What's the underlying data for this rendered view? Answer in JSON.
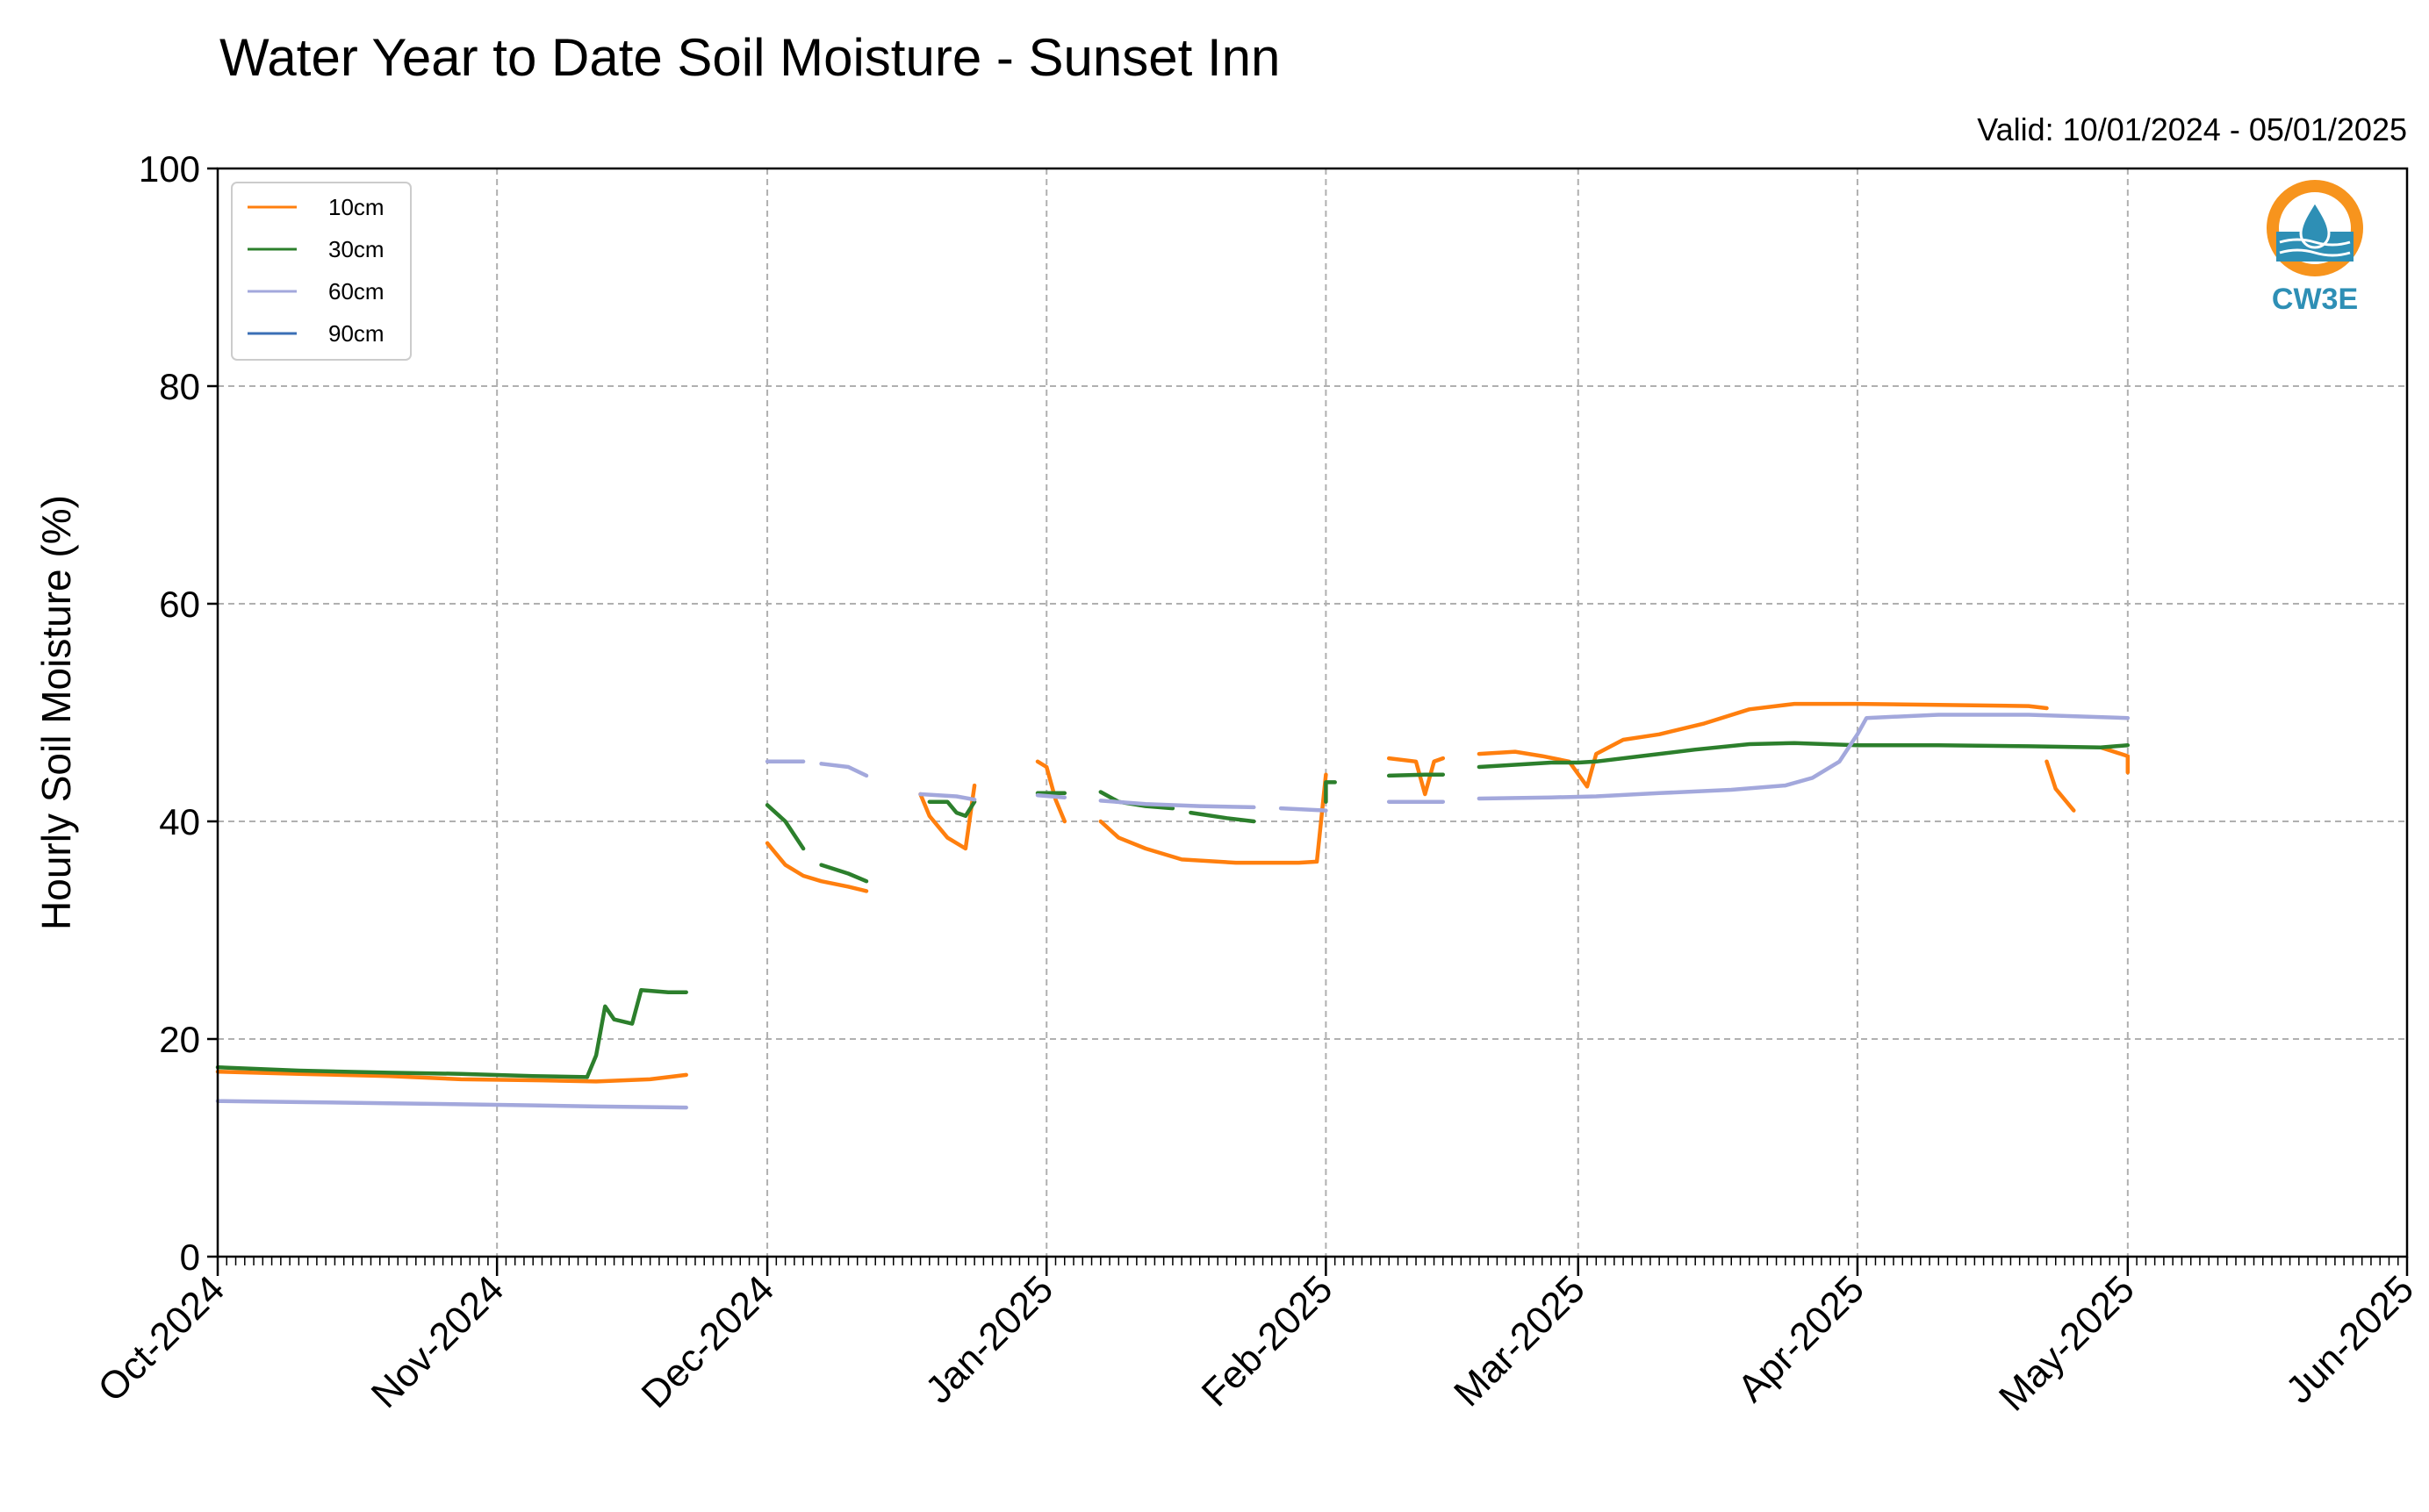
{
  "chart_data": {
    "type": "line",
    "title": "Water Year to Date Soil Moisture - Sunset Inn",
    "subtitle": "Valid: 10/01/2024 - 05/01/2025",
    "ylabel": "Hourly Soil Moisture (%)",
    "xlabel": "",
    "ylim": [
      0,
      100
    ],
    "xlim": [
      "2024-10-01",
      "2025-06-01"
    ],
    "yticks": [
      "0",
      "20",
      "40",
      "60",
      "80",
      "100"
    ],
    "xticks": [
      {
        "date": "2024-10-01",
        "label": "Oct-2024"
      },
      {
        "date": "2024-11-01",
        "label": "Nov-2024"
      },
      {
        "date": "2024-12-01",
        "label": "Dec-2024"
      },
      {
        "date": "2025-01-01",
        "label": "Jan-2025"
      },
      {
        "date": "2025-02-01",
        "label": "Feb-2025"
      },
      {
        "date": "2025-03-01",
        "label": "Mar-2025"
      },
      {
        "date": "2025-04-01",
        "label": "Apr-2025"
      },
      {
        "date": "2025-05-01",
        "label": "May-2025"
      },
      {
        "date": "2025-06-01",
        "label": "Jun-2025"
      }
    ],
    "grid": true,
    "legend_position": "top-left",
    "series": [
      {
        "name": "10cm",
        "color": "#ff7f0e",
        "segments": [
          [
            [
              "2024-10-01",
              17.0
            ],
            [
              "2024-10-10",
              16.8
            ],
            [
              "2024-10-20",
              16.6
            ],
            [
              "2024-10-28",
              16.3
            ],
            [
              "2024-11-06",
              16.2
            ],
            [
              "2024-11-12",
              16.1
            ],
            [
              "2024-11-18",
              16.3
            ],
            [
              "2024-11-22",
              16.7
            ]
          ],
          [
            [
              "2024-12-01",
              38.0
            ],
            [
              "2024-12-03",
              36.0
            ],
            [
              "2024-12-05",
              35.0
            ],
            [
              "2024-12-07",
              34.5
            ],
            [
              "2024-12-10",
              34.0
            ],
            [
              "2024-12-12",
              33.6
            ]
          ],
          [
            [
              "2024-12-18",
              42.5
            ],
            [
              "2024-12-19",
              40.5
            ],
            [
              "2024-12-21",
              38.5
            ],
            [
              "2024-12-23",
              37.5
            ],
            [
              "2024-12-24",
              43.3
            ]
          ],
          [
            [
              "2024-12-31",
              45.5
            ],
            [
              "2025-01-01",
              45.0
            ],
            [
              "2025-01-02",
              42.0
            ],
            [
              "2025-01-03",
              40.0
            ]
          ],
          [
            [
              "2025-01-07",
              40.0
            ],
            [
              "2025-01-09",
              38.5
            ],
            [
              "2025-01-12",
              37.5
            ],
            [
              "2025-01-16",
              36.5
            ],
            [
              "2025-01-22",
              36.2
            ],
            [
              "2025-01-29",
              36.2
            ],
            [
              "2025-01-31",
              36.3
            ],
            [
              "2025-02-01",
              44.3
            ]
          ],
          [
            [
              "2025-02-08",
              45.8
            ],
            [
              "2025-02-11",
              45.5
            ],
            [
              "2025-02-12",
              42.5
            ],
            [
              "2025-02-13",
              45.5
            ],
            [
              "2025-02-14",
              45.8
            ]
          ],
          [
            [
              "2025-02-18",
              46.2
            ],
            [
              "2025-02-22",
              46.4
            ],
            [
              "2025-02-25",
              46.0
            ],
            [
              "2025-02-28",
              45.5
            ],
            [
              "2025-03-02",
              43.2
            ],
            [
              "2025-03-03",
              46.2
            ],
            [
              "2025-03-06",
              47.5
            ],
            [
              "2025-03-10",
              48.0
            ],
            [
              "2025-03-15",
              49.0
            ],
            [
              "2025-03-20",
              50.3
            ],
            [
              "2025-03-25",
              50.8
            ],
            [
              "2025-04-01",
              50.8
            ],
            [
              "2025-04-10",
              50.7
            ],
            [
              "2025-04-20",
              50.6
            ],
            [
              "2025-04-22",
              50.4
            ]
          ],
          [
            [
              "2025-04-22",
              45.5
            ],
            [
              "2025-04-23",
              43.0
            ],
            [
              "2025-04-25",
              41.0
            ]
          ],
          [
            [
              "2025-04-28",
              46.8
            ],
            [
              "2025-05-01",
              46.0
            ],
            [
              "2025-05-01",
              44.5
            ]
          ]
        ]
      },
      {
        "name": "30cm",
        "color": "#2c7f2c",
        "segments": [
          [
            [
              "2024-10-01",
              17.4
            ],
            [
              "2024-10-10",
              17.1
            ],
            [
              "2024-10-20",
              16.9
            ],
            [
              "2024-10-28",
              16.8
            ],
            [
              "2024-11-05",
              16.6
            ],
            [
              "2024-11-11",
              16.5
            ]
          ],
          [
            [
              "2024-11-11",
              16.5
            ],
            [
              "2024-11-12",
              18.5
            ],
            [
              "2024-11-13",
              23.0
            ],
            [
              "2024-11-14",
              21.8
            ],
            [
              "2024-11-16",
              21.4
            ],
            [
              "2024-11-17",
              24.5
            ],
            [
              "2024-11-20",
              24.3
            ],
            [
              "2024-11-22",
              24.3
            ]
          ],
          [
            [
              "2024-12-01",
              41.5
            ],
            [
              "2024-12-03",
              40.0
            ],
            [
              "2024-12-05",
              37.5
            ]
          ],
          [
            [
              "2024-12-07",
              36.0
            ],
            [
              "2024-12-10",
              35.2
            ],
            [
              "2024-12-12",
              34.5
            ]
          ],
          [
            [
              "2024-12-19",
              41.8
            ],
            [
              "2024-12-21",
              41.8
            ],
            [
              "2024-12-22",
              40.8
            ],
            [
              "2024-12-23",
              40.5
            ],
            [
              "2024-12-24",
              41.8
            ]
          ],
          [
            [
              "2024-12-31",
              42.6
            ],
            [
              "2025-01-03",
              42.6
            ]
          ],
          [
            [
              "2025-01-07",
              42.7
            ],
            [
              "2025-01-09",
              41.8
            ],
            [
              "2025-01-12",
              41.4
            ],
            [
              "2025-01-15",
              41.2
            ]
          ],
          [
            [
              "2025-01-17",
              40.8
            ],
            [
              "2025-01-21",
              40.3
            ],
            [
              "2025-01-24",
              40.0
            ]
          ],
          [
            [
              "2025-02-01",
              41.8
            ],
            [
              "2025-02-01",
              43.6
            ],
            [
              "2025-02-02",
              43.6
            ]
          ],
          [
            [
              "2025-02-08",
              44.2
            ],
            [
              "2025-02-12",
              44.3
            ],
            [
              "2025-02-14",
              44.3
            ]
          ],
          [
            [
              "2025-02-18",
              45.0
            ],
            [
              "2025-02-22",
              45.2
            ],
            [
              "2025-02-26",
              45.4
            ],
            [
              "2025-03-01",
              45.4
            ],
            [
              "2025-03-03",
              45.5
            ],
            [
              "2025-03-08",
              46.0
            ],
            [
              "2025-03-14",
              46.6
            ],
            [
              "2025-03-20",
              47.1
            ],
            [
              "2025-03-25",
              47.2
            ],
            [
              "2025-04-01",
              47.0
            ],
            [
              "2025-04-10",
              47.0
            ],
            [
              "2025-04-20",
              46.9
            ],
            [
              "2025-04-28",
              46.8
            ],
            [
              "2025-05-01",
              47.0
            ]
          ]
        ]
      },
      {
        "name": "60cm",
        "color": "#a3a8dc",
        "segments": [
          [
            [
              "2024-10-01",
              14.3
            ],
            [
              "2024-10-10",
              14.2
            ],
            [
              "2024-10-20",
              14.1
            ],
            [
              "2024-10-28",
              14.0
            ],
            [
              "2024-11-05",
              13.9
            ],
            [
              "2024-11-12",
              13.8
            ],
            [
              "2024-11-22",
              13.7
            ]
          ],
          [
            [
              "2024-12-01",
              45.5
            ],
            [
              "2024-12-05",
              45.5
            ]
          ],
          [
            [
              "2024-12-07",
              45.3
            ],
            [
              "2024-12-10",
              45.0
            ],
            [
              "2024-12-12",
              44.2
            ]
          ],
          [
            [
              "2024-12-18",
              42.5
            ],
            [
              "2024-12-22",
              42.3
            ],
            [
              "2024-12-24",
              42.0
            ]
          ],
          [
            [
              "2024-12-31",
              42.4
            ],
            [
              "2025-01-03",
              42.2
            ]
          ],
          [
            [
              "2025-01-07",
              41.9
            ],
            [
              "2025-01-12",
              41.6
            ],
            [
              "2025-01-18",
              41.4
            ],
            [
              "2025-01-24",
              41.3
            ]
          ],
          [
            [
              "2025-01-27",
              41.2
            ],
            [
              "2025-02-01",
              41.0
            ]
          ],
          [
            [
              "2025-02-08",
              41.8
            ],
            [
              "2025-02-14",
              41.8
            ]
          ],
          [
            [
              "2025-02-18",
              42.1
            ],
            [
              "2025-02-26",
              42.2
            ],
            [
              "2025-03-03",
              42.3
            ],
            [
              "2025-03-10",
              42.6
            ],
            [
              "2025-03-18",
              42.9
            ],
            [
              "2025-03-24",
              43.3
            ],
            [
              "2025-03-27",
              44.0
            ],
            [
              "2025-03-30",
              45.5
            ],
            [
              "2025-04-01",
              48.0
            ],
            [
              "2025-04-02",
              49.5
            ],
            [
              "2025-04-10",
              49.8
            ],
            [
              "2025-04-20",
              49.8
            ],
            [
              "2025-05-01",
              49.5
            ]
          ]
        ]
      },
      {
        "name": "90cm",
        "color": "#3b6fb6",
        "segments": []
      }
    ]
  },
  "logo": {
    "text": "CW3E",
    "ring_color": "#f7941d",
    "water_color": "#2e8fb5"
  }
}
